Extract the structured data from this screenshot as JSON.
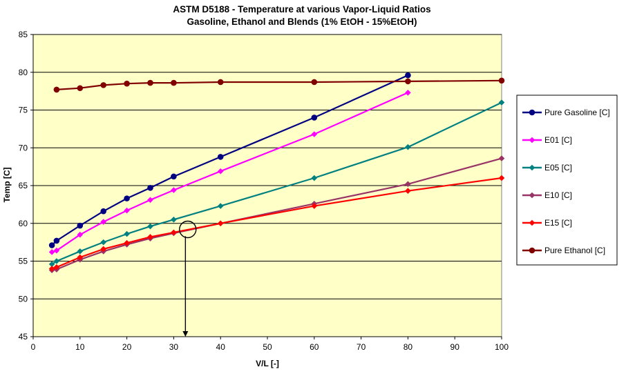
{
  "chart_data": {
    "type": "line",
    "title": "ASTM D5188 - Temperature at various Vapor-Liquid Ratios",
    "subtitle": "Gasoline, Ethanol and Blends (1% EtOH - 15%EtOH)",
    "xlabel": "V/L [-]",
    "ylabel": "Temp [C]",
    "xlim": [
      0,
      100
    ],
    "ylim": [
      45,
      85
    ],
    "x_ticks": [
      0,
      10,
      20,
      30,
      40,
      50,
      60,
      70,
      80,
      90,
      100
    ],
    "y_ticks": [
      45,
      50,
      55,
      60,
      65,
      70,
      75,
      80,
      85
    ],
    "grid": "horizontal",
    "plot_background": "#ffffc8",
    "legend_position": "right",
    "series": [
      {
        "name": "Pure Gasoline [C]",
        "color": "#000080",
        "marker": "circle",
        "x": [
          4,
          5,
          10,
          15,
          20,
          25,
          30,
          40,
          60,
          80
        ],
        "y": [
          57.1,
          57.7,
          59.7,
          61.6,
          63.3,
          64.7,
          66.2,
          68.8,
          74.0,
          79.6
        ]
      },
      {
        "name": "E01 [C]",
        "color": "#ff00ff",
        "marker": "diamond",
        "x": [
          4,
          5,
          10,
          15,
          20,
          25,
          30,
          40,
          60,
          80
        ],
        "y": [
          56.2,
          56.4,
          58.5,
          60.2,
          61.7,
          63.1,
          64.4,
          66.9,
          71.8,
          77.3
        ]
      },
      {
        "name": "E05 [C]",
        "color": "#008080",
        "marker": "diamond",
        "x": [
          4,
          5,
          10,
          15,
          20,
          25,
          30,
          40,
          60,
          80,
          100
        ],
        "y": [
          54.6,
          55.0,
          56.3,
          57.5,
          58.6,
          59.6,
          60.5,
          62.3,
          66.0,
          70.1,
          76.0
        ]
      },
      {
        "name": "E10 [C]",
        "color": "#993366",
        "marker": "diamond",
        "x": [
          4,
          5,
          10,
          15,
          20,
          25,
          30,
          40,
          60,
          80,
          100
        ],
        "y": [
          53.8,
          53.9,
          55.2,
          56.3,
          57.2,
          58.0,
          58.7,
          60.0,
          62.6,
          65.2,
          68.6
        ]
      },
      {
        "name": "E15 [C]",
        "color": "#ff0000",
        "marker": "diamond",
        "x": [
          4,
          5,
          10,
          15,
          20,
          25,
          30,
          40,
          60,
          80,
          100
        ],
        "y": [
          54.0,
          54.2,
          55.5,
          56.6,
          57.4,
          58.2,
          58.8,
          60.0,
          62.3,
          64.3,
          66.0
        ]
      },
      {
        "name": "Pure Ethanol [C]",
        "color": "#800000",
        "marker": "circle",
        "x": [
          5,
          10,
          15,
          20,
          25,
          30,
          40,
          60,
          80,
          100
        ],
        "y": [
          77.7,
          77.9,
          78.3,
          78.5,
          78.6,
          78.6,
          78.7,
          78.7,
          78.8,
          78.9
        ]
      }
    ],
    "annotations": [
      {
        "type": "circle",
        "x": 33,
        "y": 59.2
      },
      {
        "type": "arrow",
        "x": 32.5,
        "from_y": 58.3,
        "to_y": 45
      }
    ]
  }
}
